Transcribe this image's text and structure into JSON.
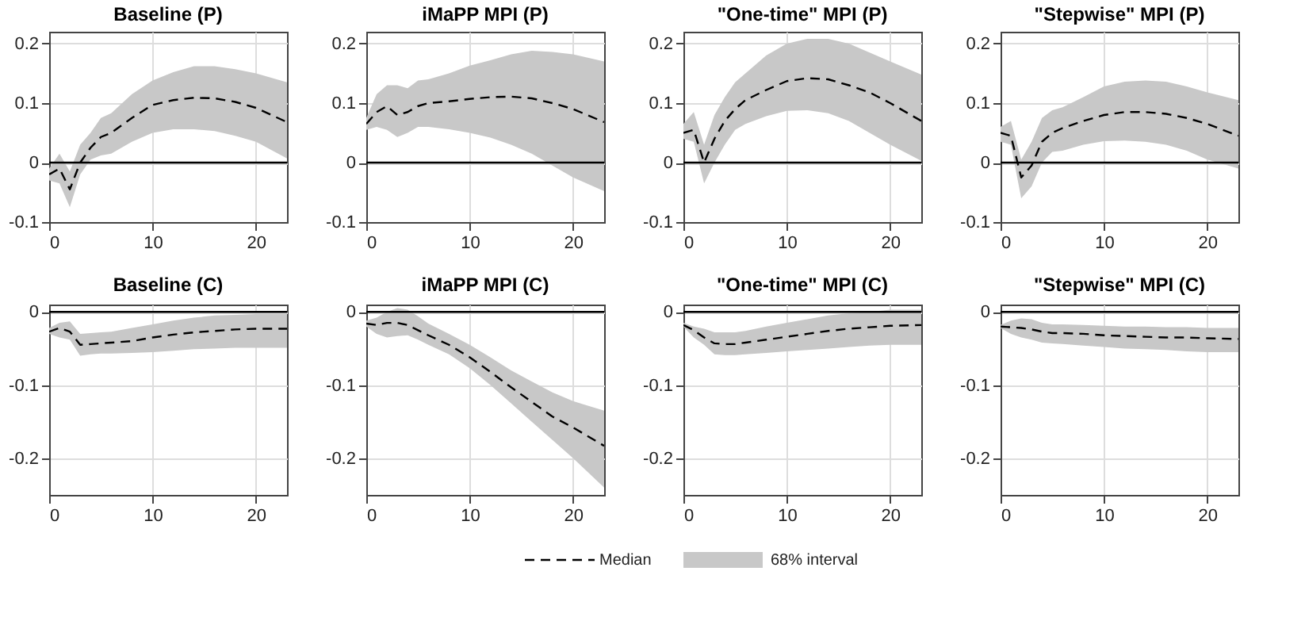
{
  "chart_data": [
    {
      "type": "line",
      "title": "Baseline (P)",
      "x": [
        0,
        1,
        2,
        3,
        4,
        5,
        6,
        8,
        10,
        12,
        14,
        16,
        18,
        20,
        23
      ],
      "xlim": [
        0,
        23
      ],
      "xticks": [
        0,
        10,
        20
      ],
      "ylim": [
        -0.1,
        0.22
      ],
      "yticks": [
        -0.1,
        0,
        0.1,
        0.2
      ],
      "grid": true,
      "legend": "bottom",
      "line_style": "dashed",
      "annotations": [
        "68% interval"
      ],
      "ref_lines": [
        {
          "axis": "y",
          "value": 0,
          "color": "#000000"
        }
      ],
      "series": [
        {
          "name": "Median",
          "color": "#000000",
          "values": [
            -0.02,
            -0.01,
            -0.045,
            0.0,
            0.025,
            0.043,
            0.05,
            0.075,
            0.097,
            0.105,
            0.109,
            0.108,
            0.102,
            0.092,
            0.068
          ],
          "lower": [
            -0.03,
            -0.035,
            -0.075,
            -0.02,
            0.005,
            0.012,
            0.015,
            0.035,
            0.05,
            0.056,
            0.056,
            0.053,
            0.045,
            0.035,
            0.007
          ],
          "upper": [
            -0.01,
            0.015,
            -0.015,
            0.03,
            0.05,
            0.075,
            0.083,
            0.115,
            0.138,
            0.152,
            0.162,
            0.162,
            0.157,
            0.15,
            0.135
          ]
        }
      ]
    },
    {
      "type": "line",
      "title": "iMaPP MPI (P)",
      "x": [
        0,
        1,
        2,
        3,
        4,
        5,
        6,
        8,
        10,
        12,
        14,
        16,
        18,
        20,
        23
      ],
      "xlim": [
        0,
        23
      ],
      "xticks": [
        0,
        10,
        20
      ],
      "ylim": [
        -0.1,
        0.22
      ],
      "yticks": [
        -0.1,
        0,
        0.1,
        0.2
      ],
      "grid": true,
      "line_style": "dashed",
      "ref_lines": [
        {
          "axis": "y",
          "value": 0,
          "color": "#000000"
        }
      ],
      "series": [
        {
          "color": "#000000",
          "values": [
            0.065,
            0.085,
            0.095,
            0.08,
            0.085,
            0.095,
            0.1,
            0.103,
            0.107,
            0.11,
            0.111,
            0.108,
            0.1,
            0.09,
            0.068
          ],
          "lower": [
            0.055,
            0.06,
            0.055,
            0.043,
            0.05,
            0.06,
            0.06,
            0.056,
            0.05,
            0.042,
            0.03,
            0.015,
            -0.005,
            -0.025,
            -0.048
          ],
          "upper": [
            0.075,
            0.115,
            0.13,
            0.13,
            0.125,
            0.138,
            0.14,
            0.15,
            0.163,
            0.172,
            0.182,
            0.188,
            0.186,
            0.182,
            0.17
          ]
        }
      ]
    },
    {
      "type": "line",
      "title": "\"One-time\" MPI (P)",
      "x": [
        0,
        1,
        2,
        3,
        4,
        5,
        6,
        8,
        10,
        12,
        14,
        16,
        18,
        20,
        23
      ],
      "xlim": [
        0,
        23
      ],
      "xticks": [
        0,
        10,
        20
      ],
      "ylim": [
        -0.1,
        0.22
      ],
      "yticks": [
        -0.1,
        0,
        0.1,
        0.2
      ],
      "grid": true,
      "line_style": "dashed",
      "ref_lines": [
        {
          "axis": "y",
          "value": 0,
          "color": "#000000"
        }
      ],
      "series": [
        {
          "color": "#000000",
          "values": [
            0.05,
            0.055,
            0.0,
            0.04,
            0.07,
            0.09,
            0.105,
            0.122,
            0.137,
            0.142,
            0.14,
            0.13,
            0.118,
            0.1,
            0.07
          ],
          "lower": [
            0.04,
            0.035,
            -0.035,
            0.0,
            0.03,
            0.055,
            0.065,
            0.078,
            0.087,
            0.088,
            0.083,
            0.07,
            0.05,
            0.03,
            0.003
          ],
          "upper": [
            0.065,
            0.085,
            0.03,
            0.08,
            0.11,
            0.135,
            0.15,
            0.18,
            0.2,
            0.208,
            0.208,
            0.2,
            0.185,
            0.17,
            0.148
          ]
        }
      ]
    },
    {
      "type": "line",
      "title": "\"Stepwise\" MPI (P)",
      "x": [
        0,
        1,
        2,
        3,
        4,
        5,
        6,
        8,
        10,
        12,
        14,
        16,
        18,
        20,
        23
      ],
      "xlim": [
        0,
        23
      ],
      "xticks": [
        0,
        10,
        20
      ],
      "ylim": [
        -0.1,
        0.22
      ],
      "yticks": [
        -0.1,
        0,
        0.1,
        0.2
      ],
      "grid": true,
      "line_style": "dashed",
      "ref_lines": [
        {
          "axis": "y",
          "value": 0,
          "color": "#000000"
        }
      ],
      "series": [
        {
          "color": "#000000",
          "values": [
            0.05,
            0.045,
            -0.025,
            -0.005,
            0.035,
            0.05,
            0.058,
            0.07,
            0.08,
            0.085,
            0.085,
            0.082,
            0.075,
            0.065,
            0.045
          ],
          "lower": [
            0.035,
            0.03,
            -0.06,
            -0.04,
            0.0,
            0.018,
            0.02,
            0.03,
            0.036,
            0.037,
            0.035,
            0.03,
            0.02,
            0.005,
            -0.01
          ],
          "upper": [
            0.06,
            0.07,
            0.005,
            0.035,
            0.075,
            0.088,
            0.093,
            0.11,
            0.128,
            0.136,
            0.138,
            0.136,
            0.128,
            0.118,
            0.105
          ]
        }
      ]
    },
    {
      "type": "line",
      "title": "Baseline (C)",
      "x": [
        0,
        1,
        2,
        3,
        4,
        5,
        6,
        8,
        10,
        12,
        14,
        16,
        18,
        20,
        23
      ],
      "xlim": [
        0,
        23
      ],
      "xticks": [
        0,
        10,
        20
      ],
      "ylim": [
        -0.25,
        0.01
      ],
      "yticks": [
        -0.2,
        -0.1,
        0
      ],
      "grid": true,
      "line_style": "dashed",
      "ref_lines": [
        {
          "axis": "y",
          "value": 0,
          "color": "#000000"
        }
      ],
      "series": [
        {
          "color": "#000000",
          "values": [
            -0.027,
            -0.022,
            -0.027,
            -0.045,
            -0.044,
            -0.043,
            -0.042,
            -0.04,
            -0.035,
            -0.031,
            -0.028,
            -0.026,
            -0.024,
            -0.023,
            -0.023
          ],
          "lower": [
            -0.03,
            -0.035,
            -0.038,
            -0.06,
            -0.058,
            -0.057,
            -0.057,
            -0.056,
            -0.055,
            -0.053,
            -0.051,
            -0.05,
            -0.049,
            -0.049,
            -0.049
          ],
          "upper": [
            -0.022,
            -0.015,
            -0.013,
            -0.03,
            -0.029,
            -0.028,
            -0.027,
            -0.022,
            -0.017,
            -0.012,
            -0.008,
            -0.005,
            -0.004,
            -0.003,
            -0.003
          ]
        }
      ]
    },
    {
      "type": "line",
      "title": "iMaPP MPI (C)",
      "x": [
        0,
        1,
        2,
        3,
        4,
        5,
        6,
        8,
        10,
        12,
        14,
        16,
        18,
        20,
        23
      ],
      "xlim": [
        0,
        23
      ],
      "xticks": [
        0,
        10,
        20
      ],
      "ylim": [
        -0.25,
        0.01
      ],
      "yticks": [
        -0.2,
        -0.1,
        0
      ],
      "grid": true,
      "line_style": "dashed",
      "ref_lines": [
        {
          "axis": "y",
          "value": 0,
          "color": "#000000"
        }
      ],
      "series": [
        {
          "color": "#000000",
          "values": [
            -0.016,
            -0.018,
            -0.015,
            -0.015,
            -0.018,
            -0.025,
            -0.032,
            -0.045,
            -0.062,
            -0.082,
            -0.103,
            -0.123,
            -0.143,
            -0.158,
            -0.183
          ],
          "lower": [
            -0.02,
            -0.03,
            -0.035,
            -0.033,
            -0.032,
            -0.038,
            -0.045,
            -0.058,
            -0.077,
            -0.1,
            -0.125,
            -0.15,
            -0.175,
            -0.2,
            -0.24
          ],
          "upper": [
            -0.012,
            -0.008,
            0.0,
            0.005,
            0.003,
            -0.006,
            -0.016,
            -0.03,
            -0.045,
            -0.062,
            -0.08,
            -0.095,
            -0.11,
            -0.122,
            -0.135
          ]
        }
      ]
    },
    {
      "type": "line",
      "title": "\"One-time\" MPI (C)",
      "x": [
        0,
        1,
        2,
        3,
        4,
        5,
        6,
        8,
        10,
        12,
        14,
        16,
        18,
        20,
        23
      ],
      "xlim": [
        0,
        23
      ],
      "xticks": [
        0,
        10,
        20
      ],
      "ylim": [
        -0.25,
        0.01
      ],
      "yticks": [
        -0.2,
        -0.1,
        0
      ],
      "grid": true,
      "line_style": "dashed",
      "ref_lines": [
        {
          "axis": "y",
          "value": 0,
          "color": "#000000"
        }
      ],
      "series": [
        {
          "color": "#000000",
          "values": [
            -0.018,
            -0.025,
            -0.035,
            -0.043,
            -0.044,
            -0.044,
            -0.042,
            -0.038,
            -0.034,
            -0.03,
            -0.026,
            -0.023,
            -0.021,
            -0.019,
            -0.018
          ],
          "lower": [
            -0.02,
            -0.035,
            -0.045,
            -0.058,
            -0.059,
            -0.059,
            -0.058,
            -0.056,
            -0.054,
            -0.052,
            -0.05,
            -0.048,
            -0.046,
            -0.045,
            -0.045
          ],
          "upper": [
            -0.015,
            -0.02,
            -0.023,
            -0.028,
            -0.028,
            -0.028,
            -0.026,
            -0.02,
            -0.015,
            -0.01,
            -0.005,
            -0.002,
            0.0,
            0.003,
            0.003
          ]
        }
      ]
    },
    {
      "type": "line",
      "title": "\"Stepwise\" MPI (C)",
      "x": [
        0,
        1,
        2,
        3,
        4,
        5,
        6,
        8,
        10,
        12,
        14,
        16,
        18,
        20,
        23
      ],
      "xlim": [
        0,
        23
      ],
      "xticks": [
        0,
        10,
        20
      ],
      "ylim": [
        -0.25,
        0.01
      ],
      "yticks": [
        -0.2,
        -0.1,
        0
      ],
      "grid": true,
      "line_style": "dashed",
      "ref_lines": [
        {
          "axis": "y",
          "value": 0,
          "color": "#000000"
        }
      ],
      "series": [
        {
          "color": "#000000",
          "values": [
            -0.02,
            -0.021,
            -0.022,
            -0.024,
            -0.027,
            -0.029,
            -0.029,
            -0.03,
            -0.032,
            -0.033,
            -0.034,
            -0.035,
            -0.035,
            -0.036,
            -0.037
          ],
          "lower": [
            -0.022,
            -0.03,
            -0.035,
            -0.038,
            -0.042,
            -0.043,
            -0.044,
            -0.046,
            -0.048,
            -0.05,
            -0.051,
            -0.052,
            -0.054,
            -0.055,
            -0.055
          ],
          "upper": [
            -0.018,
            -0.012,
            -0.009,
            -0.01,
            -0.015,
            -0.017,
            -0.017,
            -0.018,
            -0.019,
            -0.02,
            -0.02,
            -0.021,
            -0.021,
            -0.022,
            -0.022
          ]
        }
      ]
    }
  ]
}
